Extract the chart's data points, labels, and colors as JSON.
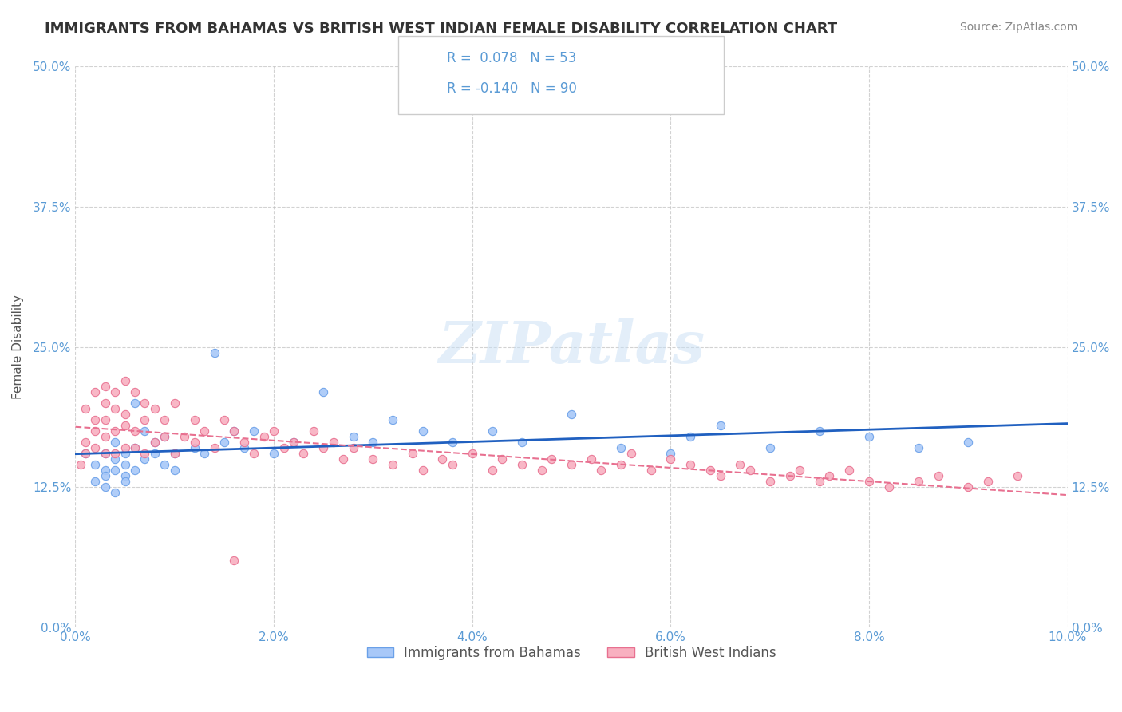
{
  "title": "IMMIGRANTS FROM BAHAMAS VS BRITISH WEST INDIAN FEMALE DISABILITY CORRELATION CHART",
  "source_text": "Source: ZipAtlas.com",
  "xlabel": "",
  "ylabel": "Female Disability",
  "xlim": [
    0.0,
    0.1
  ],
  "ylim": [
    0.0,
    0.5
  ],
  "xticks": [
    0.0,
    0.02,
    0.04,
    0.06,
    0.08,
    0.1
  ],
  "xtick_labels": [
    "0.0%",
    "2.0%",
    "4.0%",
    "6.0%",
    "8.0%",
    "10.0%"
  ],
  "yticks": [
    0.0,
    0.125,
    0.25,
    0.375,
    0.5
  ],
  "ytick_labels": [
    "0.0%",
    "12.5%",
    "25.0%",
    "37.5%",
    "50.0%"
  ],
  "watermark": "ZIPatlas",
  "series1_name": "Immigrants from Bahamas",
  "series1_color": "#a8c8f8",
  "series1_edge": "#6aa0e8",
  "series1_line_color": "#2060c0",
  "series1_R": 0.078,
  "series1_N": 53,
  "series2_name": "British West Indians",
  "series2_color": "#f8b0c0",
  "series2_edge": "#e87090",
  "series2_line_color": "#e87090",
  "series2_R": -0.14,
  "series2_N": 90,
  "title_fontsize": 13,
  "axis_color": "#5b9bd5",
  "background_color": "#ffffff",
  "grid_color": "#c0c0c0",
  "series1_x": [
    0.001,
    0.002,
    0.002,
    0.003,
    0.003,
    0.003,
    0.003,
    0.004,
    0.004,
    0.004,
    0.004,
    0.005,
    0.005,
    0.005,
    0.005,
    0.006,
    0.006,
    0.006,
    0.007,
    0.007,
    0.008,
    0.008,
    0.009,
    0.009,
    0.01,
    0.01,
    0.012,
    0.013,
    0.014,
    0.015,
    0.016,
    0.017,
    0.018,
    0.02,
    0.022,
    0.025,
    0.028,
    0.03,
    0.032,
    0.035,
    0.038,
    0.042,
    0.045,
    0.05,
    0.055,
    0.06,
    0.062,
    0.065,
    0.07,
    0.075,
    0.08,
    0.085,
    0.09
  ],
  "series1_y": [
    0.155,
    0.13,
    0.145,
    0.14,
    0.135,
    0.125,
    0.155,
    0.14,
    0.12,
    0.15,
    0.165,
    0.135,
    0.145,
    0.155,
    0.13,
    0.2,
    0.16,
    0.14,
    0.175,
    0.15,
    0.165,
    0.155,
    0.17,
    0.145,
    0.155,
    0.14,
    0.16,
    0.155,
    0.245,
    0.165,
    0.175,
    0.16,
    0.175,
    0.155,
    0.165,
    0.21,
    0.17,
    0.165,
    0.185,
    0.175,
    0.165,
    0.175,
    0.165,
    0.19,
    0.16,
    0.155,
    0.17,
    0.18,
    0.16,
    0.175,
    0.17,
    0.16,
    0.165
  ],
  "series2_x": [
    0.0005,
    0.001,
    0.001,
    0.001,
    0.002,
    0.002,
    0.002,
    0.002,
    0.003,
    0.003,
    0.003,
    0.003,
    0.003,
    0.004,
    0.004,
    0.004,
    0.004,
    0.005,
    0.005,
    0.005,
    0.005,
    0.006,
    0.006,
    0.006,
    0.007,
    0.007,
    0.007,
    0.008,
    0.008,
    0.009,
    0.009,
    0.01,
    0.01,
    0.011,
    0.012,
    0.012,
    0.013,
    0.014,
    0.015,
    0.016,
    0.016,
    0.017,
    0.018,
    0.019,
    0.02,
    0.021,
    0.022,
    0.023,
    0.024,
    0.025,
    0.026,
    0.027,
    0.028,
    0.03,
    0.032,
    0.034,
    0.035,
    0.037,
    0.038,
    0.04,
    0.042,
    0.043,
    0.045,
    0.047,
    0.048,
    0.05,
    0.052,
    0.053,
    0.055,
    0.056,
    0.058,
    0.06,
    0.062,
    0.064,
    0.065,
    0.067,
    0.068,
    0.07,
    0.072,
    0.073,
    0.075,
    0.076,
    0.078,
    0.08,
    0.082,
    0.085,
    0.087,
    0.09,
    0.092,
    0.095
  ],
  "series2_y": [
    0.145,
    0.165,
    0.195,
    0.155,
    0.21,
    0.185,
    0.175,
    0.16,
    0.2,
    0.215,
    0.185,
    0.17,
    0.155,
    0.195,
    0.21,
    0.175,
    0.155,
    0.18,
    0.22,
    0.16,
    0.19,
    0.21,
    0.175,
    0.16,
    0.2,
    0.185,
    0.155,
    0.195,
    0.165,
    0.185,
    0.17,
    0.2,
    0.155,
    0.17,
    0.185,
    0.165,
    0.175,
    0.16,
    0.185,
    0.06,
    0.175,
    0.165,
    0.155,
    0.17,
    0.175,
    0.16,
    0.165,
    0.155,
    0.175,
    0.16,
    0.165,
    0.15,
    0.16,
    0.15,
    0.145,
    0.155,
    0.14,
    0.15,
    0.145,
    0.155,
    0.14,
    0.15,
    0.145,
    0.14,
    0.15,
    0.145,
    0.15,
    0.14,
    0.145,
    0.155,
    0.14,
    0.15,
    0.145,
    0.14,
    0.135,
    0.145,
    0.14,
    0.13,
    0.135,
    0.14,
    0.13,
    0.135,
    0.14,
    0.13,
    0.125,
    0.13,
    0.135,
    0.125,
    0.13,
    0.135
  ]
}
